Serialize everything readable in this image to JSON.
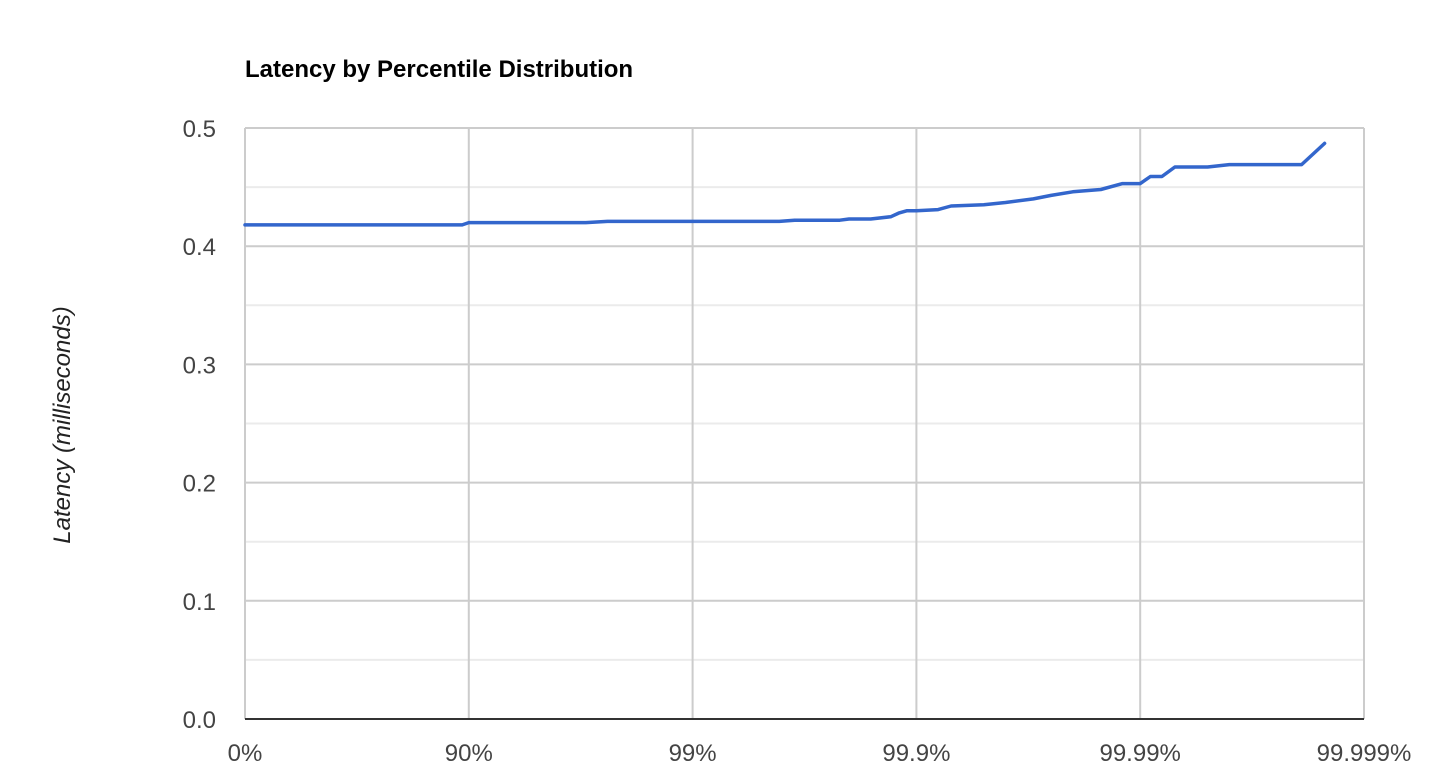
{
  "chart_data": {
    "type": "line",
    "title": "Latency by Percentile Distribution",
    "xlabel": "",
    "ylabel": "Latency (milliseconds)",
    "x_scale": "log-inverse-percentile (1/(1-p))",
    "x_ticks": [
      {
        "label": "0%",
        "value": 0
      },
      {
        "label": "90%",
        "value": 90
      },
      {
        "label": "99%",
        "value": 99
      },
      {
        "label": "99.9%",
        "value": 99.9
      },
      {
        "label": "99.99%",
        "value": 99.99
      },
      {
        "label": "99.999%",
        "value": 99.999
      }
    ],
    "ylim": [
      0,
      0.5
    ],
    "y_ticks": [
      "0.0",
      "0.1",
      "0.2",
      "0.3",
      "0.4",
      "0.5"
    ],
    "y_minor_ticks": [
      0.05,
      0.15,
      0.25,
      0.35,
      0.45
    ],
    "grid": true,
    "legend": "none",
    "line_color": "#3366cc",
    "series": [
      {
        "points": [
          {
            "percentile": 0,
            "latency": 0.418
          },
          {
            "percentile": 89.3,
            "latency": 0.418
          },
          {
            "percentile": 90.0,
            "latency": 0.42
          },
          {
            "percentile": 97.0,
            "latency": 0.42
          },
          {
            "percentile": 97.6,
            "latency": 0.421
          },
          {
            "percentile": 99.0,
            "latency": 0.421
          },
          {
            "percentile": 99.59,
            "latency": 0.421
          },
          {
            "percentile": 99.65,
            "latency": 0.422
          },
          {
            "percentile": 99.78,
            "latency": 0.422
          },
          {
            "percentile": 99.8,
            "latency": 0.423
          },
          {
            "percentile": 99.84,
            "latency": 0.423
          },
          {
            "percentile": 99.87,
            "latency": 0.425
          },
          {
            "percentile": 99.88,
            "latency": 0.428
          },
          {
            "percentile": 99.89,
            "latency": 0.43
          },
          {
            "percentile": 99.9,
            "latency": 0.43
          },
          {
            "percentile": 99.92,
            "latency": 0.431
          },
          {
            "percentile": 99.93,
            "latency": 0.434
          },
          {
            "percentile": 99.95,
            "latency": 0.435
          },
          {
            "percentile": 99.96,
            "latency": 0.437
          },
          {
            "percentile": 99.97,
            "latency": 0.44
          },
          {
            "percentile": 99.975,
            "latency": 0.443
          },
          {
            "percentile": 99.98,
            "latency": 0.446
          },
          {
            "percentile": 99.985,
            "latency": 0.448
          },
          {
            "percentile": 99.988,
            "latency": 0.453
          },
          {
            "percentile": 99.99,
            "latency": 0.453
          },
          {
            "percentile": 99.991,
            "latency": 0.459
          },
          {
            "percentile": 99.992,
            "latency": 0.459
          },
          {
            "percentile": 99.993,
            "latency": 0.467
          },
          {
            "percentile": 99.995,
            "latency": 0.467
          },
          {
            "percentile": 99.996,
            "latency": 0.469
          },
          {
            "percentile": 99.9981,
            "latency": 0.469
          },
          {
            "percentile": 99.9985,
            "latency": 0.487
          }
        ]
      }
    ]
  }
}
